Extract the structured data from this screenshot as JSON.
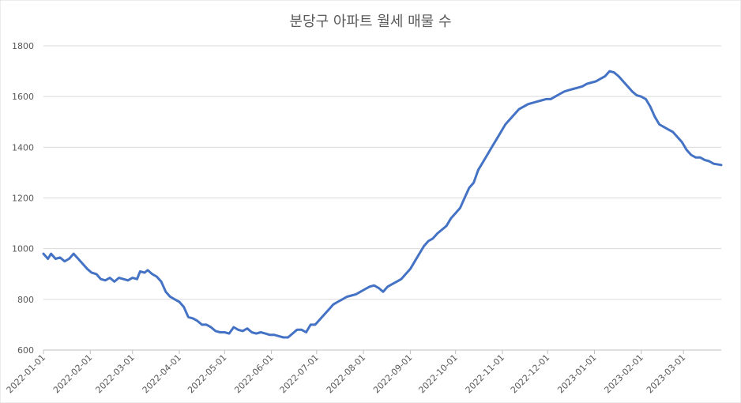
{
  "chart_data": {
    "type": "line",
    "title": "분당구 아파트 월세 매물 수",
    "xlabel": "",
    "ylabel": "",
    "ylim": [
      600,
      1800
    ],
    "yticks": [
      600,
      800,
      1000,
      1200,
      1400,
      1600,
      1800
    ],
    "x_range": [
      "2022-01-01",
      "2023-03-26"
    ],
    "xticks": [
      "2022-01-01",
      "2022-02-01",
      "2022-03-01",
      "2022-04-01",
      "2022-05-01",
      "2022-06-01",
      "2022-07-01",
      "2022-08-01",
      "2022-09-01",
      "2022-10-01",
      "2022-11-01",
      "2022-12-01",
      "2023-01-01",
      "2023-02-01",
      "2023-03-01"
    ],
    "grid": true,
    "legend": "none",
    "line_color": "#4472C4",
    "series": [
      {
        "points": [
          [
            "2022-01-01",
            980
          ],
          [
            "2022-01-04",
            960
          ],
          [
            "2022-01-06",
            980
          ],
          [
            "2022-01-09",
            960
          ],
          [
            "2022-01-12",
            965
          ],
          [
            "2022-01-15",
            950
          ],
          [
            "2022-01-18",
            960
          ],
          [
            "2022-01-21",
            980
          ],
          [
            "2022-01-24",
            960
          ],
          [
            "2022-01-27",
            940
          ],
          [
            "2022-01-30",
            920
          ],
          [
            "2022-02-02",
            905
          ],
          [
            "2022-02-05",
            900
          ],
          [
            "2022-02-08",
            880
          ],
          [
            "2022-02-11",
            875
          ],
          [
            "2022-02-14",
            885
          ],
          [
            "2022-02-17",
            870
          ],
          [
            "2022-02-20",
            885
          ],
          [
            "2022-02-23",
            880
          ],
          [
            "2022-02-26",
            875
          ],
          [
            "2022-03-01",
            885
          ],
          [
            "2022-03-04",
            880
          ],
          [
            "2022-03-06",
            910
          ],
          [
            "2022-03-09",
            905
          ],
          [
            "2022-03-11",
            915
          ],
          [
            "2022-03-14",
            900
          ],
          [
            "2022-03-17",
            890
          ],
          [
            "2022-03-20",
            870
          ],
          [
            "2022-03-23",
            830
          ],
          [
            "2022-03-26",
            810
          ],
          [
            "2022-03-29",
            800
          ],
          [
            "2022-04-01",
            790
          ],
          [
            "2022-04-04",
            770
          ],
          [
            "2022-04-07",
            730
          ],
          [
            "2022-04-10",
            725
          ],
          [
            "2022-04-13",
            715
          ],
          [
            "2022-04-16",
            700
          ],
          [
            "2022-04-19",
            700
          ],
          [
            "2022-04-22",
            690
          ],
          [
            "2022-04-25",
            675
          ],
          [
            "2022-04-28",
            670
          ],
          [
            "2022-05-01",
            670
          ],
          [
            "2022-05-04",
            665
          ],
          [
            "2022-05-07",
            690
          ],
          [
            "2022-05-10",
            680
          ],
          [
            "2022-05-13",
            675
          ],
          [
            "2022-05-16",
            685
          ],
          [
            "2022-05-19",
            670
          ],
          [
            "2022-05-22",
            665
          ],
          [
            "2022-05-25",
            670
          ],
          [
            "2022-05-28",
            665
          ],
          [
            "2022-05-31",
            660
          ],
          [
            "2022-06-03",
            660
          ],
          [
            "2022-06-06",
            655
          ],
          [
            "2022-06-09",
            650
          ],
          [
            "2022-06-12",
            650
          ],
          [
            "2022-06-15",
            665
          ],
          [
            "2022-06-18",
            680
          ],
          [
            "2022-06-21",
            680
          ],
          [
            "2022-06-24",
            670
          ],
          [
            "2022-06-27",
            700
          ],
          [
            "2022-06-30",
            700
          ],
          [
            "2022-07-03",
            720
          ],
          [
            "2022-07-06",
            740
          ],
          [
            "2022-07-09",
            760
          ],
          [
            "2022-07-12",
            780
          ],
          [
            "2022-07-15",
            790
          ],
          [
            "2022-07-18",
            800
          ],
          [
            "2022-07-21",
            810
          ],
          [
            "2022-07-24",
            815
          ],
          [
            "2022-07-27",
            820
          ],
          [
            "2022-07-30",
            830
          ],
          [
            "2022-08-02",
            840
          ],
          [
            "2022-08-05",
            850
          ],
          [
            "2022-08-08",
            855
          ],
          [
            "2022-08-11",
            845
          ],
          [
            "2022-08-14",
            830
          ],
          [
            "2022-08-17",
            850
          ],
          [
            "2022-08-20",
            860
          ],
          [
            "2022-08-23",
            870
          ],
          [
            "2022-08-26",
            880
          ],
          [
            "2022-08-29",
            900
          ],
          [
            "2022-09-01",
            920
          ],
          [
            "2022-09-04",
            950
          ],
          [
            "2022-09-07",
            980
          ],
          [
            "2022-09-10",
            1010
          ],
          [
            "2022-09-13",
            1030
          ],
          [
            "2022-09-16",
            1040
          ],
          [
            "2022-09-19",
            1060
          ],
          [
            "2022-09-22",
            1075
          ],
          [
            "2022-09-25",
            1090
          ],
          [
            "2022-09-28",
            1120
          ],
          [
            "2022-10-01",
            1140
          ],
          [
            "2022-10-04",
            1160
          ],
          [
            "2022-10-07",
            1200
          ],
          [
            "2022-10-10",
            1240
          ],
          [
            "2022-10-13",
            1260
          ],
          [
            "2022-10-16",
            1310
          ],
          [
            "2022-10-19",
            1340
          ],
          [
            "2022-10-22",
            1370
          ],
          [
            "2022-10-25",
            1400
          ],
          [
            "2022-10-28",
            1430
          ],
          [
            "2022-10-31",
            1460
          ],
          [
            "2022-11-03",
            1490
          ],
          [
            "2022-11-06",
            1510
          ],
          [
            "2022-11-09",
            1530
          ],
          [
            "2022-11-12",
            1550
          ],
          [
            "2022-11-15",
            1560
          ],
          [
            "2022-11-18",
            1570
          ],
          [
            "2022-11-21",
            1575
          ],
          [
            "2022-11-24",
            1580
          ],
          [
            "2022-11-27",
            1585
          ],
          [
            "2022-11-30",
            1590
          ],
          [
            "2022-12-03",
            1590
          ],
          [
            "2022-12-06",
            1600
          ],
          [
            "2022-12-09",
            1610
          ],
          [
            "2022-12-12",
            1620
          ],
          [
            "2022-12-15",
            1625
          ],
          [
            "2022-12-18",
            1630
          ],
          [
            "2022-12-21",
            1635
          ],
          [
            "2022-12-24",
            1640
          ],
          [
            "2022-12-27",
            1650
          ],
          [
            "2022-12-30",
            1655
          ],
          [
            "2023-01-02",
            1660
          ],
          [
            "2023-01-05",
            1670
          ],
          [
            "2023-01-08",
            1680
          ],
          [
            "2023-01-11",
            1700
          ],
          [
            "2023-01-14",
            1695
          ],
          [
            "2023-01-17",
            1680
          ],
          [
            "2023-01-20",
            1660
          ],
          [
            "2023-01-23",
            1640
          ],
          [
            "2023-01-26",
            1620
          ],
          [
            "2023-01-29",
            1605
          ],
          [
            "2023-02-01",
            1600
          ],
          [
            "2023-02-04",
            1590
          ],
          [
            "2023-02-07",
            1560
          ],
          [
            "2023-02-10",
            1520
          ],
          [
            "2023-02-13",
            1490
          ],
          [
            "2023-02-16",
            1480
          ],
          [
            "2023-02-19",
            1470
          ],
          [
            "2023-02-22",
            1460
          ],
          [
            "2023-02-25",
            1440
          ],
          [
            "2023-02-28",
            1420
          ],
          [
            "2023-03-03",
            1390
          ],
          [
            "2023-03-06",
            1370
          ],
          [
            "2023-03-09",
            1360
          ],
          [
            "2023-03-12",
            1360
          ],
          [
            "2023-03-15",
            1350
          ],
          [
            "2023-03-18",
            1345
          ],
          [
            "2023-03-21",
            1335
          ],
          [
            "2023-03-26",
            1330
          ]
        ]
      }
    ]
  }
}
